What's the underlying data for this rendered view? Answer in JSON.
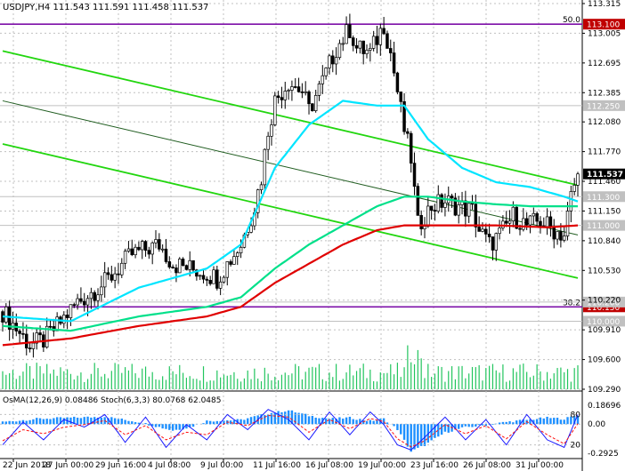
{
  "header": {
    "symbol_line": "USDJPY,H4  111.543 111.591 111.458 111.537"
  },
  "sub_header": {
    "indicator_line": "OsMA(12,26,9) 0.08486  Stoch(6,3,3) 80.0768 62.0485"
  },
  "colors": {
    "background": "#ffffff",
    "grid": "#c0c0c0",
    "candle": "#000000",
    "ema_short": "#00e5ff",
    "ema_mid": "#00e08a",
    "ema_long": "#e00000",
    "channel": "#22d60f",
    "fib_line": "#7d10a8",
    "osma": "#1e90ff",
    "stoch_main": "#1a1aff",
    "stoch_signal": "#ff1010",
    "price_tag": "#000000",
    "red_tag": "#c00000",
    "grey_tag": "#c0c0c0"
  },
  "chart_data": {
    "type": "candlestick",
    "title": "USDJPY,H4",
    "price_axis": {
      "ticks": [
        "113.315",
        "113.005",
        "112.695",
        "112.385",
        "112.080",
        "111.770",
        "111.460",
        "111.150",
        "110.840",
        "110.530",
        "110.220",
        "109.910",
        "109.600",
        "109.290"
      ],
      "range": [
        109.29,
        113.315
      ]
    },
    "time_axis": {
      "labels": [
        "22 Jun 2018",
        "27 Jun 00:00",
        "29 Jun 16:00",
        "4 Jul 08:00",
        "9 Jul 00:00",
        "11 Jul 16:00",
        "16 Jul 08:00",
        "19 Jul 00:00",
        "23 Jul 16:00",
        "26 Jul 08:00",
        "31 Jul 00:00"
      ]
    },
    "levels": [
      {
        "label": "50.0",
        "price": 113.1,
        "tag": "113.100",
        "kind": "fib"
      },
      {
        "label": "38.2",
        "price": 110.15,
        "tag": "110.150",
        "kind": "fib"
      },
      {
        "label": "",
        "price": 112.25,
        "tag": "112.250",
        "kind": "grey"
      },
      {
        "label": "",
        "price": 111.3,
        "tag": "111.300",
        "kind": "grey"
      },
      {
        "label": "",
        "price": 111.0,
        "tag": "111.000",
        "kind": "grey"
      },
      {
        "label": "",
        "price": 110.2,
        "tag": "110.200",
        "kind": "grey"
      },
      {
        "label": "",
        "price": 110.0,
        "tag": "110.000",
        "kind": "grey"
      }
    ],
    "current_price": {
      "value": 111.537,
      "tag": "111.537"
    },
    "extra_tag": "111.460",
    "candle_count": 170,
    "price_path": [
      [
        0,
        110.1
      ],
      [
        8,
        109.75
      ],
      [
        12,
        109.8
      ],
      [
        16,
        109.95
      ],
      [
        22,
        110.2
      ],
      [
        30,
        110.4
      ],
      [
        38,
        110.7
      ],
      [
        46,
        110.8
      ],
      [
        50,
        110.6
      ],
      [
        55,
        110.55
      ],
      [
        60,
        110.5
      ],
      [
        63,
        110.45
      ],
      [
        66,
        110.6
      ],
      [
        70,
        110.8
      ],
      [
        72,
        111.0
      ],
      [
        74,
        111.2
      ],
      [
        76,
        111.5
      ],
      [
        78,
        112.0
      ],
      [
        80,
        112.3
      ],
      [
        84,
        112.5
      ],
      [
        88,
        112.4
      ],
      [
        90,
        112.2
      ],
      [
        94,
        112.5
      ],
      [
        98,
        112.85
      ],
      [
        102,
        113.05
      ],
      [
        104,
        112.85
      ],
      [
        108,
        112.8
      ],
      [
        112,
        113.1
      ],
      [
        114,
        112.8
      ],
      [
        116,
        112.4
      ],
      [
        118,
        112.0
      ],
      [
        120,
        111.7
      ],
      [
        122,
        111.0
      ],
      [
        126,
        111.2
      ],
      [
        130,
        111.25
      ],
      [
        134,
        111.2
      ],
      [
        138,
        111.15
      ],
      [
        140,
        110.95
      ],
      [
        143,
        110.8
      ],
      [
        146,
        110.9
      ],
      [
        150,
        111.1
      ],
      [
        154,
        111.0
      ],
      [
        158,
        111.05
      ],
      [
        162,
        110.95
      ],
      [
        165,
        110.9
      ],
      [
        167,
        111.3
      ],
      [
        169,
        111.537
      ]
    ],
    "series": [
      {
        "name": "",
        "kind": "ema_short",
        "points": [
          [
            0,
            110.05
          ],
          [
            20,
            110.0
          ],
          [
            40,
            110.35
          ],
          [
            60,
            110.55
          ],
          [
            70,
            110.8
          ],
          [
            80,
            111.6
          ],
          [
            90,
            112.05
          ],
          [
            100,
            112.3
          ],
          [
            110,
            112.25
          ],
          [
            118,
            112.25
          ],
          [
            125,
            111.9
          ],
          [
            135,
            111.6
          ],
          [
            145,
            111.45
          ],
          [
            155,
            111.4
          ],
          [
            165,
            111.3
          ],
          [
            169,
            111.25
          ]
        ]
      },
      {
        "name": "",
        "kind": "ema_mid",
        "points": [
          [
            0,
            109.95
          ],
          [
            20,
            109.9
          ],
          [
            40,
            110.05
          ],
          [
            60,
            110.15
          ],
          [
            70,
            110.25
          ],
          [
            80,
            110.55
          ],
          [
            90,
            110.8
          ],
          [
            100,
            111.0
          ],
          [
            110,
            111.2
          ],
          [
            118,
            111.3
          ],
          [
            125,
            111.3
          ],
          [
            135,
            111.25
          ],
          [
            145,
            111.22
          ],
          [
            155,
            111.2
          ],
          [
            169,
            111.2
          ]
        ]
      },
      {
        "name": "",
        "kind": "ema_long",
        "points": [
          [
            0,
            109.75
          ],
          [
            20,
            109.82
          ],
          [
            40,
            109.95
          ],
          [
            60,
            110.05
          ],
          [
            70,
            110.15
          ],
          [
            80,
            110.4
          ],
          [
            90,
            110.6
          ],
          [
            100,
            110.8
          ],
          [
            110,
            110.95
          ],
          [
            118,
            111.0
          ],
          [
            130,
            111.0
          ],
          [
            145,
            111.0
          ],
          [
            160,
            110.98
          ],
          [
            169,
            111.0
          ]
        ]
      }
    ],
    "channel_lines": [
      {
        "from": [
          0,
          112.82
        ],
        "to": [
          169,
          111.42
        ]
      },
      {
        "from": [
          0,
          111.85
        ],
        "to": [
          169,
          110.45
        ]
      },
      {
        "from": [
          0,
          112.3
        ],
        "to": [
          169,
          110.9
        ]
      }
    ],
    "oscillator": {
      "osma_ticks": [
        "0.18696",
        "0.00",
        "-0.2925"
      ],
      "stoch_ticks": [
        "80",
        "20"
      ],
      "osma_range": [
        -0.2925,
        0.18696
      ],
      "osma_path": [
        [
          0,
          0.02
        ],
        [
          10,
          0.05
        ],
        [
          20,
          0.06
        ],
        [
          30,
          0.07
        ],
        [
          40,
          0.02
        ],
        [
          50,
          -0.06
        ],
        [
          55,
          -0.03
        ],
        [
          60,
          0.03
        ],
        [
          70,
          0.04
        ],
        [
          78,
          0.1
        ],
        [
          84,
          0.13
        ],
        [
          90,
          0.08
        ],
        [
          96,
          0.05
        ],
        [
          102,
          0.06
        ],
        [
          108,
          0.03
        ],
        [
          112,
          0.05
        ],
        [
          116,
          -0.05
        ],
        [
          120,
          -0.26
        ],
        [
          124,
          -0.2
        ],
        [
          130,
          -0.08
        ],
        [
          136,
          -0.03
        ],
        [
          142,
          -0.01
        ],
        [
          148,
          0.02
        ],
        [
          154,
          0.04
        ],
        [
          160,
          0.06
        ],
        [
          165,
          0.05
        ],
        [
          169,
          0.085
        ]
      ],
      "stoch_main_path": [
        [
          0,
          20
        ],
        [
          6,
          65
        ],
        [
          12,
          30
        ],
        [
          18,
          70
        ],
        [
          24,
          55
        ],
        [
          30,
          80
        ],
        [
          36,
          25
        ],
        [
          42,
          75
        ],
        [
          48,
          15
        ],
        [
          54,
          60
        ],
        [
          60,
          30
        ],
        [
          66,
          80
        ],
        [
          72,
          50
        ],
        [
          78,
          90
        ],
        [
          84,
          70
        ],
        [
          90,
          30
        ],
        [
          96,
          85
        ],
        [
          102,
          40
        ],
        [
          108,
          85
        ],
        [
          112,
          60
        ],
        [
          116,
          20
        ],
        [
          120,
          10
        ],
        [
          124,
          35
        ],
        [
          130,
          75
        ],
        [
          136,
          30
        ],
        [
          142,
          70
        ],
        [
          148,
          20
        ],
        [
          154,
          80
        ],
        [
          160,
          30
        ],
        [
          165,
          15
        ],
        [
          169,
          80
        ]
      ],
      "stoch_signal_path": [
        [
          0,
          28
        ],
        [
          6,
          50
        ],
        [
          12,
          42
        ],
        [
          18,
          55
        ],
        [
          24,
          60
        ],
        [
          30,
          68
        ],
        [
          36,
          40
        ],
        [
          42,
          58
        ],
        [
          48,
          30
        ],
        [
          54,
          45
        ],
        [
          60,
          40
        ],
        [
          66,
          65
        ],
        [
          72,
          58
        ],
        [
          78,
          78
        ],
        [
          84,
          75
        ],
        [
          90,
          45
        ],
        [
          96,
          70
        ],
        [
          102,
          52
        ],
        [
          108,
          72
        ],
        [
          112,
          66
        ],
        [
          116,
          32
        ],
        [
          120,
          16
        ],
        [
          124,
          28
        ],
        [
          130,
          60
        ],
        [
          136,
          42
        ],
        [
          142,
          58
        ],
        [
          148,
          32
        ],
        [
          154,
          66
        ],
        [
          160,
          40
        ],
        [
          165,
          22
        ],
        [
          169,
          62
        ]
      ]
    }
  }
}
